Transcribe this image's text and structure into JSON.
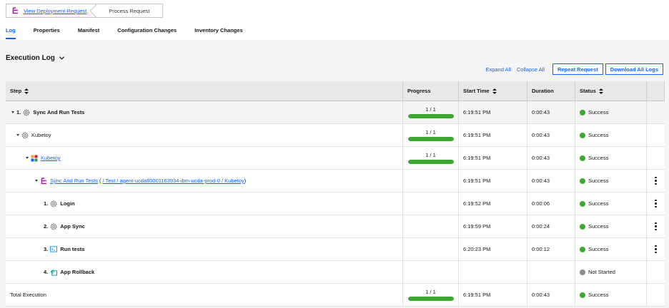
{
  "breadcrumb": {
    "link": "View Deployment Request",
    "current": "Process Request"
  },
  "tabs": [
    "Log",
    "Properties",
    "Manifest",
    "Configuration Changes",
    "Inventory Changes"
  ],
  "section_title": "Execution Log",
  "actions": {
    "expand_all": "Expand All",
    "collapse_all": "Collapse All",
    "repeat": "Repeat Request",
    "download": "Download All Logs"
  },
  "columns": {
    "step": "Step",
    "progress": "Progress",
    "start": "Start Time",
    "duration": "Duration",
    "status": "Status"
  },
  "rows": [
    {
      "num": "1.",
      "name": "Sync And Run Tests",
      "progress": "1 / 1",
      "progress_fraction": 1.0,
      "start": "6:19:51 PM",
      "duration": "0:00:43",
      "status": "Success"
    },
    {
      "name": "Kubetoy",
      "progress": "1 / 1",
      "progress_fraction": 1.0,
      "start": "6:19:51 PM",
      "duration": "0:00:43",
      "status": "Success"
    },
    {
      "name": "Kubetoy",
      "progress": "1 / 1",
      "progress_fraction": 1.0,
      "start": "6:19:51 PM",
      "duration": "0:00:43",
      "status": "Success"
    },
    {
      "name": "Sync And Run Tests",
      "paren_open": "(",
      "path": "/ Test / agent-ucda80001163934-ibm-ucda-prod-0 / Kubetoy",
      "paren_close": ")",
      "start": "6:19:51 PM",
      "duration": "0:00:43",
      "status": "Success"
    },
    {
      "num": "1.",
      "name": "Login",
      "start": "6:19:52 PM",
      "duration": "0:00:06",
      "status": "Success"
    },
    {
      "num": "2.",
      "name": "App Sync",
      "start": "6:19:59 PM",
      "duration": "0:00:24",
      "status": "Success"
    },
    {
      "num": "3.",
      "name": "Run tests",
      "start": "6:20:23 PM",
      "duration": "0:00:12",
      "status": "Success"
    },
    {
      "num": "4.",
      "name": "App Rollback",
      "start": "",
      "duration": "",
      "status": "Not Started"
    }
  ],
  "total": {
    "label": "Total Execution",
    "progress": "1 / 1",
    "progress_fraction": 1.0,
    "start": "6:19:51 PM",
    "duration": "0:00:43",
    "status": "Success"
  },
  "colors": {
    "accent": "#0f62fe",
    "success": "#42be65",
    "not_started": "#8d8d8d"
  }
}
